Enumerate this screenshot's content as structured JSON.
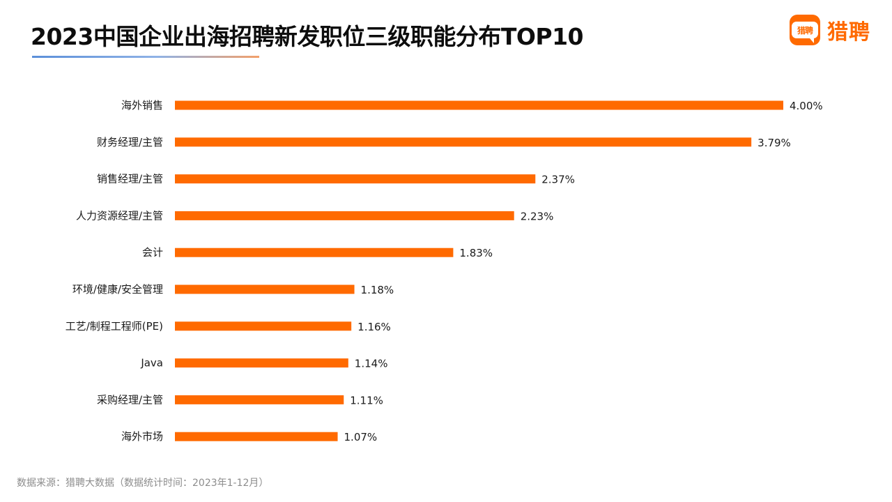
{
  "title": "2023中国企业出海招聘新发职位三级职能分布TOP10",
  "logo": {
    "badge_text": "猎聘",
    "text": "猎聘"
  },
  "colors": {
    "bar": "#FF6A00",
    "brand": "#FF6A00",
    "rule": "#5B8FD9",
    "label": "#1a1a1a",
    "source": "#8c8c8c"
  },
  "source_note": "数据来源：猎聘大数据（数据统计时间：2023年1-12月）",
  "chart_data": {
    "type": "bar",
    "orientation": "horizontal",
    "title": "2023中国企业出海招聘新发职位三级职能分布TOP10",
    "xlabel": "",
    "ylabel": "",
    "unit": "%",
    "grid": false,
    "xlim": [
      0,
      4.0
    ],
    "categories": [
      "海外销售",
      "财务经理/主管",
      "销售经理/主管",
      "人力资源经理/主管",
      "会计",
      "环境/健康/安全管理",
      "工艺/制程工程师(PE)",
      "Java",
      "采购经理/主管",
      "海外市场"
    ],
    "values": [
      4.0,
      3.79,
      2.37,
      2.23,
      1.83,
      1.18,
      1.16,
      1.14,
      1.11,
      1.07
    ],
    "value_labels": [
      "4.00%",
      "3.79%",
      "2.37%",
      "2.23%",
      "1.83%",
      "1.18%",
      "1.16%",
      "1.14%",
      "1.11%",
      "1.07%"
    ]
  }
}
